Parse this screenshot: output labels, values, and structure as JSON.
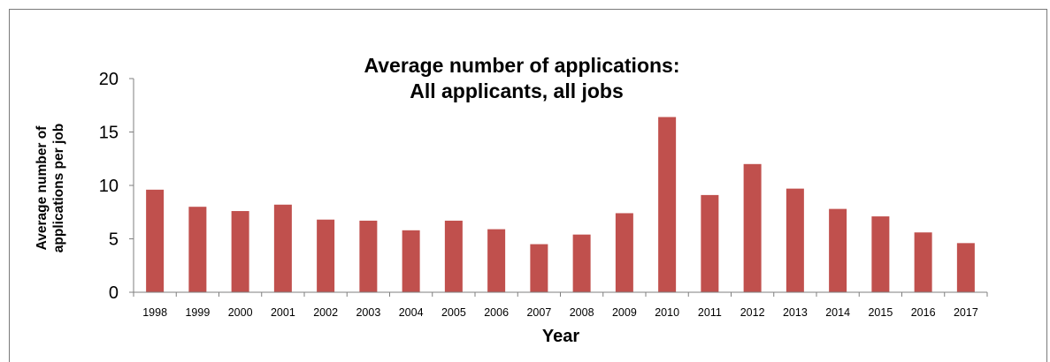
{
  "chart_data": {
    "type": "bar",
    "title_lines": [
      "Average number of applications:",
      "All applicants, all jobs"
    ],
    "xlabel": "Year",
    "ylabel_lines": [
      "Average number of",
      "applications per job"
    ],
    "ylim": [
      0,
      20
    ],
    "yticks": [
      0,
      5,
      10,
      15,
      20
    ],
    "categories": [
      "1998",
      "1999",
      "2000",
      "2001",
      "2002",
      "2003",
      "2004",
      "2005",
      "2006",
      "2007",
      "2008",
      "2009",
      "2010",
      "2011",
      "2012",
      "2013",
      "2014",
      "2015",
      "2016",
      "2017"
    ],
    "values": [
      9.6,
      8.0,
      7.6,
      8.2,
      6.8,
      6.7,
      5.8,
      6.7,
      5.9,
      4.5,
      5.4,
      7.4,
      16.4,
      9.1,
      12.0,
      9.7,
      7.8,
      7.1,
      5.6,
      4.6
    ],
    "bar_color": "#c0504d",
    "grid": false,
    "legend": "none"
  }
}
